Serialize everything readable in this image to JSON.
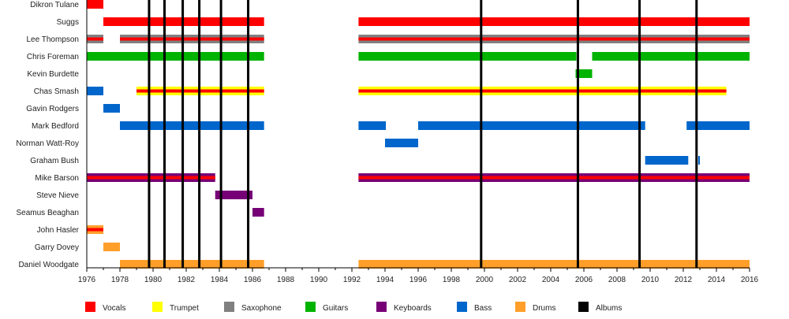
{
  "chart_data": {
    "type": "timeline",
    "xlim": [
      1976,
      2016
    ],
    "x_ticks": [
      1976,
      1978,
      1980,
      1982,
      1984,
      1986,
      1988,
      1990,
      1992,
      1994,
      1996,
      1998,
      2000,
      2002,
      2004,
      2006,
      2008,
      2010,
      2012,
      2014,
      2016
    ],
    "roles": [
      {
        "key": "vocals",
        "label": "Vocals",
        "color": "#ff0000"
      },
      {
        "key": "trumpet",
        "label": "Trumpet",
        "color": "#ffff00"
      },
      {
        "key": "saxophone",
        "label": "Saxophone",
        "color": "#808080"
      },
      {
        "key": "guitars",
        "label": "Guitars",
        "color": "#00b300"
      },
      {
        "key": "keyboards",
        "label": "Keyboards",
        "color": "#770077"
      },
      {
        "key": "bass",
        "label": "Bass",
        "color": "#0066cc"
      },
      {
        "key": "drums",
        "label": "Drums",
        "color": "#ff9f2a"
      },
      {
        "key": "albums",
        "label": "Albums",
        "color": "#000000"
      }
    ],
    "albums": [
      1979.76,
      1980.69,
      1981.79,
      1982.79,
      1984.1,
      1985.74,
      1999.8,
      2005.64,
      2009.36,
      2012.8
    ],
    "members": [
      {
        "name": "Dikron Tulane",
        "periods": [
          {
            "role": "vocals",
            "start": 1976,
            "end": 1977
          }
        ]
      },
      {
        "name": "Suggs",
        "periods": [
          {
            "role": "vocals",
            "start": 1977,
            "end": 1986.7
          },
          {
            "role": "vocals",
            "start": 1992.4,
            "end": 2016
          }
        ]
      },
      {
        "name": "Lee Thompson",
        "periods": [
          {
            "role": "saxophone",
            "secondary": "vocals",
            "start": 1976,
            "end": 1977
          },
          {
            "role": "saxophone",
            "secondary": "vocals",
            "start": 1978,
            "end": 1986.7
          },
          {
            "role": "saxophone",
            "secondary": "vocals",
            "start": 1992.4,
            "end": 2016
          }
        ]
      },
      {
        "name": "Chris Foreman",
        "periods": [
          {
            "role": "guitars",
            "start": 1976,
            "end": 1986.7
          },
          {
            "role": "guitars",
            "start": 1992.4,
            "end": 2005.55
          },
          {
            "role": "guitars",
            "start": 2006.5,
            "end": 2016
          }
        ]
      },
      {
        "name": "Kevin Burdette",
        "periods": [
          {
            "role": "guitars",
            "start": 2005.5,
            "end": 2006.5
          }
        ]
      },
      {
        "name": "Chas Smash",
        "periods": [
          {
            "role": "bass",
            "start": 1976,
            "end": 1977
          },
          {
            "role": "trumpet",
            "secondary": "vocals",
            "start": 1979,
            "end": 1986.7
          },
          {
            "role": "trumpet",
            "secondary": "vocals",
            "start": 1992.4,
            "end": 2014.6
          }
        ]
      },
      {
        "name": "Gavin Rodgers",
        "periods": [
          {
            "role": "bass",
            "start": 1977,
            "end": 1978
          }
        ]
      },
      {
        "name": "Mark Bedford",
        "periods": [
          {
            "role": "bass",
            "start": 1978,
            "end": 1986.7
          },
          {
            "role": "bass",
            "start": 1992.4,
            "end": 1994.05
          },
          {
            "role": "bass",
            "start": 1996,
            "end": 2009.7
          },
          {
            "role": "bass",
            "start": 2012.2,
            "end": 2016
          }
        ]
      },
      {
        "name": "Norman Watt-Roy",
        "periods": [
          {
            "role": "bass",
            "start": 1994,
            "end": 1996
          }
        ]
      },
      {
        "name": "Graham Bush",
        "periods": [
          {
            "role": "bass",
            "start": 2009.7,
            "end": 2012.3
          },
          {
            "role": "bass",
            "start": 2012.9,
            "end": 2013
          }
        ]
      },
      {
        "name": "Mike Barson",
        "periods": [
          {
            "role": "keyboards",
            "secondary": "vocals",
            "start": 1976,
            "end": 1983.75
          },
          {
            "role": "keyboards",
            "secondary": "vocals",
            "start": 1992.4,
            "end": 2016
          }
        ]
      },
      {
        "name": "Steve Nieve",
        "periods": [
          {
            "role": "keyboards",
            "start": 1983.75,
            "end": 1986
          }
        ]
      },
      {
        "name": "Seamus Beaghan",
        "periods": [
          {
            "role": "keyboards",
            "start": 1986,
            "end": 1986.7
          }
        ]
      },
      {
        "name": "John Hasler",
        "periods": [
          {
            "role": "drums",
            "secondary": "vocals",
            "start": 1976,
            "end": 1977
          }
        ]
      },
      {
        "name": "Garry Dovey",
        "periods": [
          {
            "role": "drums",
            "start": 1977,
            "end": 1978
          }
        ]
      },
      {
        "name": "Daniel Woodgate",
        "periods": [
          {
            "role": "drums",
            "start": 1978,
            "end": 1986.7
          },
          {
            "role": "drums",
            "start": 1992.4,
            "end": 2016
          }
        ]
      }
    ],
    "legend": "bottom",
    "grid": false
  }
}
